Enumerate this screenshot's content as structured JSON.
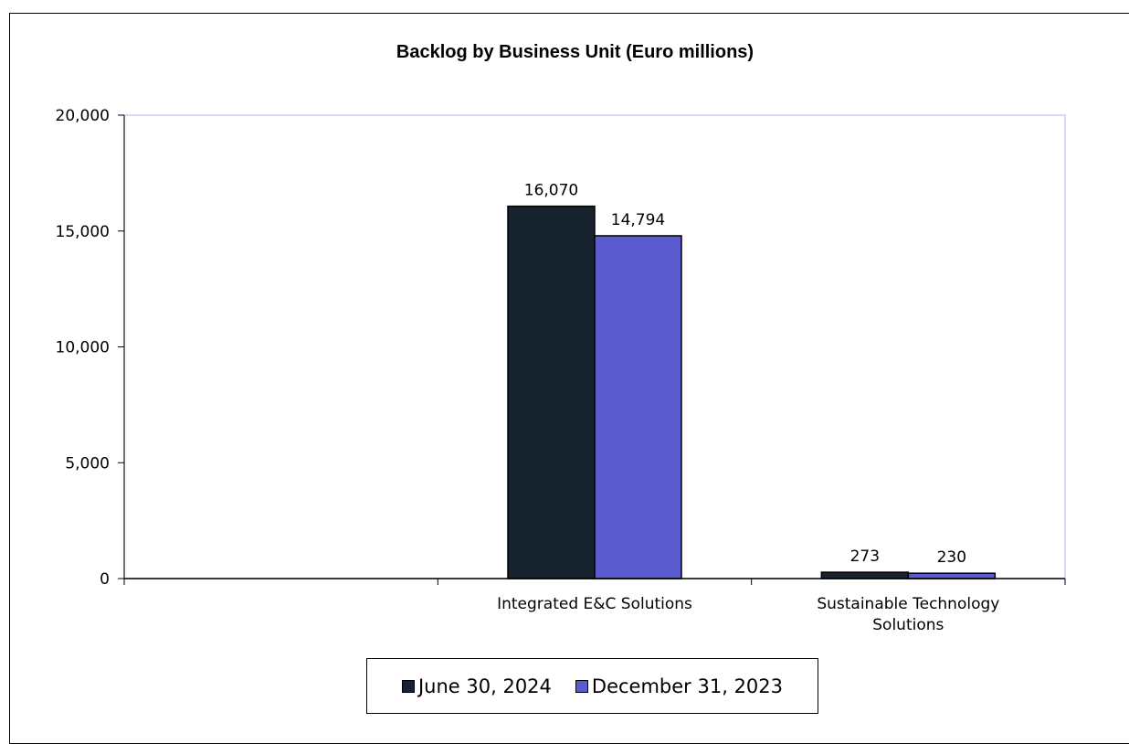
{
  "chart_data": {
    "type": "bar",
    "title": "Backlog by Business Unit (Euro millions)",
    "categories": [
      "",
      "Integrated E&C Solutions",
      "Sustainable Technology Solutions"
    ],
    "category_lines": [
      [
        ""
      ],
      [
        "Integrated E&C Solutions"
      ],
      [
        "Sustainable Technology",
        "Solutions"
      ]
    ],
    "series": [
      {
        "name": "June 30, 2024",
        "color": "#17232f",
        "values": [
          null,
          16070,
          273
        ],
        "labels": [
          "",
          "16,070",
          "273"
        ]
      },
      {
        "name": "December 31, 2023",
        "color": "#5b5bd0",
        "values": [
          null,
          14794,
          230
        ],
        "labels": [
          "",
          "14,794",
          "230"
        ]
      }
    ],
    "ylim": [
      0,
      20000
    ],
    "yticks": [
      0,
      5000,
      10000,
      15000,
      20000
    ],
    "ytick_labels": [
      "0",
      "5,000",
      "10,000",
      "15,000",
      "20,000"
    ],
    "xlabel": "",
    "ylabel": "",
    "grid": false,
    "legend_position": "bottom",
    "plot_border_color": "#c8cdf0"
  }
}
